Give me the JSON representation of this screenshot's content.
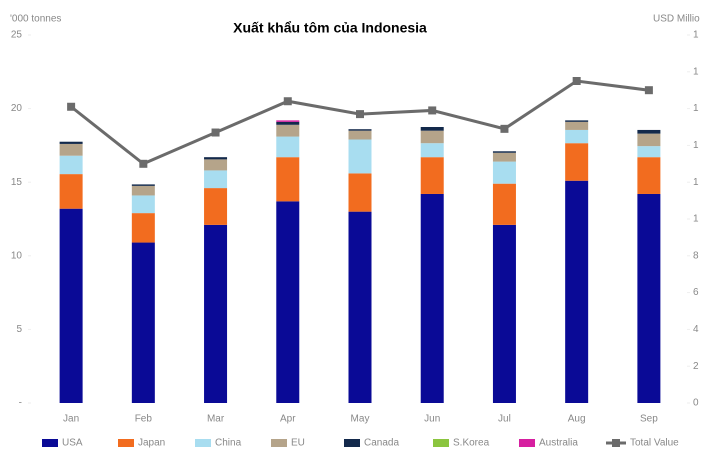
{
  "chart_data": {
    "type": "stacked_bar_line",
    "title": "Xuất khẩu tôm của Indonesia",
    "y_label": "'000 tonnes",
    "y2_label": "USD Millio",
    "categories": [
      "Jan",
      "Feb",
      "Mar",
      "Apr",
      "May",
      "Jun",
      "Jul",
      "Aug",
      "Sep"
    ],
    "series": [
      {
        "name": "USA",
        "color": "#0a0a96",
        "values": [
          13.2,
          10.9,
          12.1,
          13.7,
          13.0,
          14.2,
          12.1,
          15.1,
          14.2
        ]
      },
      {
        "name": "Japan",
        "color": "#f26c1f",
        "values": [
          2.35,
          2.0,
          2.5,
          3.0,
          2.6,
          2.5,
          2.8,
          2.55,
          2.5
        ]
      },
      {
        "name": "China",
        "color": "#a8ddf0",
        "values": [
          1.25,
          1.2,
          1.2,
          1.4,
          2.3,
          0.95,
          1.5,
          0.9,
          0.75
        ]
      },
      {
        "name": "EU",
        "color": "#b5a48a",
        "values": [
          0.8,
          0.65,
          0.75,
          0.8,
          0.6,
          0.85,
          0.6,
          0.55,
          0.85
        ]
      },
      {
        "name": "Canada",
        "color": "#13294b",
        "values": [
          0.15,
          0.1,
          0.15,
          0.2,
          0.1,
          0.25,
          0.1,
          0.1,
          0.25
        ]
      },
      {
        "name": "S.Korea",
        "color": "#8bc53f",
        "values": [
          0,
          0,
          0,
          0,
          0,
          0,
          0,
          0,
          0
        ]
      },
      {
        "name": "Australia",
        "color": "#d61fa0",
        "values": [
          0,
          0,
          0,
          0.1,
          0,
          0,
          0,
          0,
          0
        ]
      },
      {
        "name": "Total Value",
        "color": "#6b6b6b",
        "axis": "y2",
        "values": [
          161,
          130,
          147,
          164,
          157,
          159,
          149,
          175,
          170
        ]
      }
    ],
    "ylim": [
      0,
      25
    ],
    "yticks": [
      {
        "value": 0,
        "label": "-"
      },
      5,
      10,
      15,
      20,
      25
    ],
    "y2lim": [
      0,
      200
    ],
    "y2ticks": [
      0,
      {
        "value": 20,
        "label": "2"
      },
      {
        "value": 40,
        "label": "4"
      },
      {
        "value": 60,
        "label": "6"
      },
      {
        "value": 80,
        "label": "8"
      },
      {
        "value": 100,
        "label": "1"
      },
      {
        "value": 120,
        "label": "1"
      },
      {
        "value": 140,
        "label": "1"
      },
      {
        "value": 160,
        "label": "1"
      },
      {
        "value": 180,
        "label": "1"
      },
      {
        "value": 200,
        "label": "1"
      }
    ],
    "grid": false
  }
}
